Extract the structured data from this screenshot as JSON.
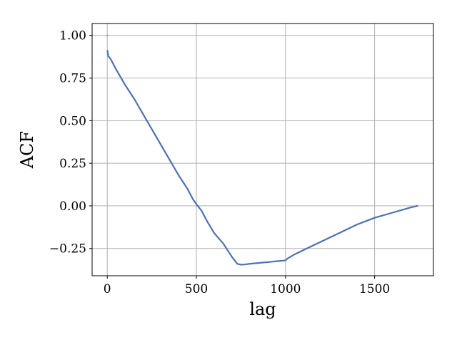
{
  "chart_data": {
    "type": "line",
    "title": "",
    "xlabel": "lag",
    "ylabel": "ACF",
    "xlim": [
      -85,
      1830
    ],
    "ylim": [
      -0.41,
      1.07
    ],
    "xticks": [
      0,
      500,
      1000,
      1500
    ],
    "xtick_labels": [
      "0",
      "500",
      "1000",
      "1500"
    ],
    "yticks": [
      -0.25,
      0.0,
      0.25,
      0.5,
      0.75,
      1.0
    ],
    "ytick_labels": [
      "−0.25",
      "0.00",
      "0.25",
      "0.50",
      "0.75",
      "1.00"
    ],
    "grid": true,
    "legend": "none",
    "line_color": "#4c72b0",
    "outlier_color": "#dd8452",
    "series": [
      {
        "x": [
          0,
          1,
          5,
          20,
          50,
          100,
          150,
          200,
          250,
          300,
          350,
          400,
          450,
          480,
          500,
          530,
          560,
          600,
          650,
          700,
          730,
          750,
          760,
          800,
          900,
          1000,
          1010,
          1050,
          1100,
          1200,
          1300,
          1400,
          1500,
          1600,
          1700,
          1740
        ],
        "values": [
          1.0,
          0.91,
          0.88,
          0.86,
          0.8,
          0.71,
          0.63,
          0.54,
          0.45,
          0.36,
          0.27,
          0.18,
          0.1,
          0.04,
          0.01,
          -0.03,
          -0.09,
          -0.16,
          -0.22,
          -0.3,
          -0.34,
          -0.345,
          -0.345,
          -0.34,
          -0.33,
          -0.32,
          -0.31,
          -0.285,
          -0.26,
          -0.21,
          -0.16,
          -0.11,
          -0.07,
          -0.04,
          -0.01,
          0.0
        ]
      }
    ]
  }
}
